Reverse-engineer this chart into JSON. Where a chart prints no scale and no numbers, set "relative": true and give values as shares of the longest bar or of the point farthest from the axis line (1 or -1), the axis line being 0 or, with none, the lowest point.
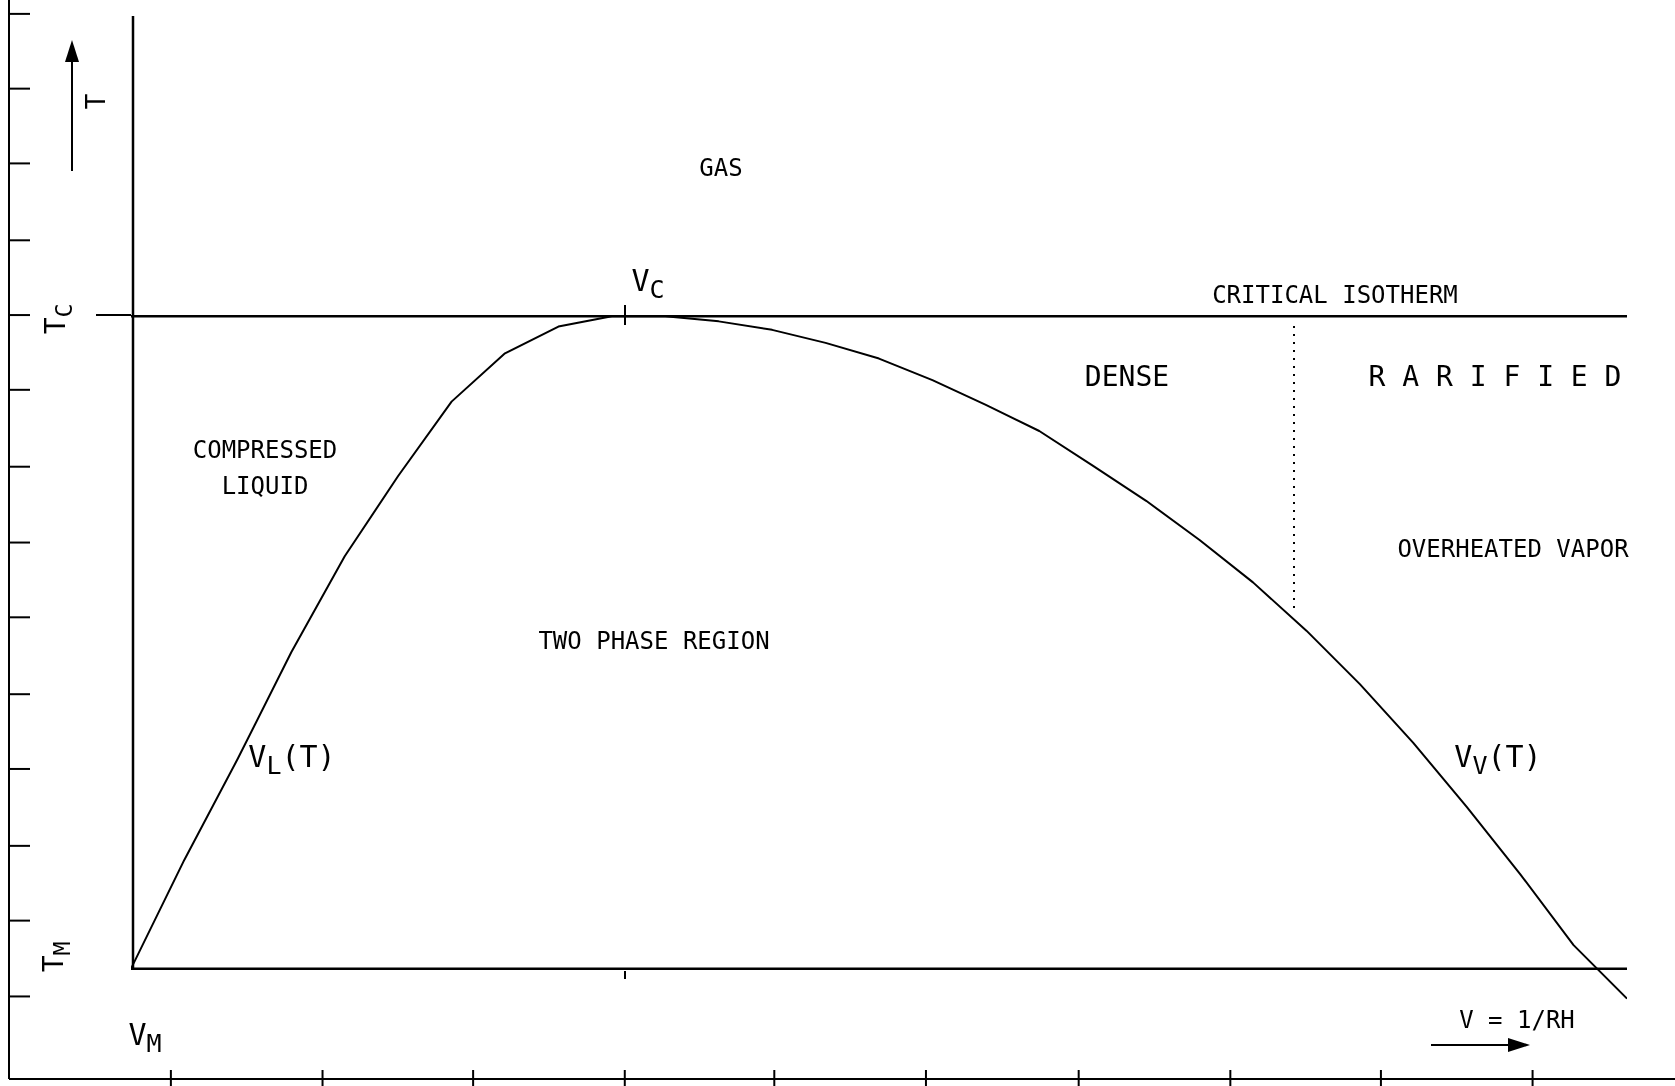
{
  "chart_data": {
    "type": "line",
    "relative": true,
    "marker": "none",
    "line_style": "solid",
    "categories": [
      null,
      null,
      null,
      null,
      null,
      null,
      null,
      null,
      null,
      null,
      null,
      null,
      null,
      null,
      null,
      null,
      null,
      null,
      null,
      null,
      null,
      null,
      null,
      null,
      null,
      null,
      null,
      null,
      null
    ],
    "series": [
      {
        "color": "#000000",
        "values": [
          0,
          0.167,
          0.322,
          0.485,
          0.632,
          0.755,
          0.869,
          0.943,
          0.984,
          1,
          1,
          0.992,
          0.979,
          0.959,
          0.935,
          0.902,
          0.864,
          0.824,
          0.771,
          0.717,
          0.657,
          0.592,
          0.518,
          0.436,
          0.346,
          0.248,
          0.145,
          0.036,
          -0.046
        ]
      }
    ],
    "ref_lines": [
      {
        "axis": "y",
        "value": 0,
        "label": "T$_{M}$"
      },
      {
        "axis": "y",
        "value": 1,
        "label": "CRITICAL ISOTHERM"
      }
    ],
    "annotations": [
      "GAS",
      "V$_{C}$",
      "T$_{C}$",
      "DENSE",
      "R A R I F I E D",
      "COMPRESSED LIQUID",
      "OVERHEATED VAPOR",
      "TWO PHASE REGION",
      "V$_{L}$(T)",
      "V$_{V}$(T)",
      "V$_{M}$",
      "T",
      "V = 1/RH"
    ]
  }
}
